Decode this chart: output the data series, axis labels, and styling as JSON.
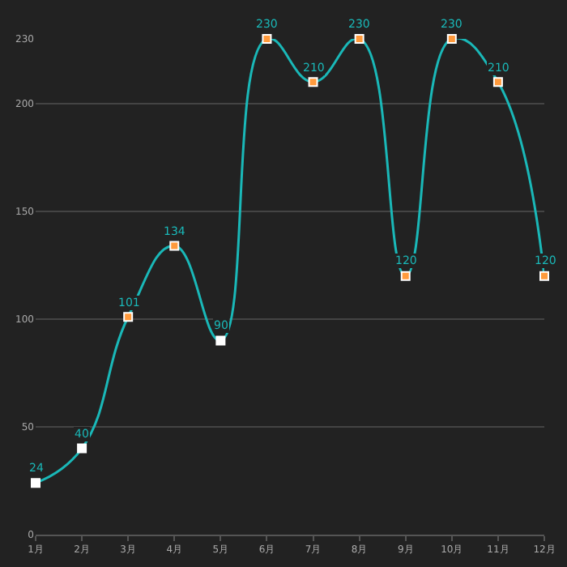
{
  "chart_data": {
    "type": "line",
    "categories": [
      "1月",
      "2月",
      "3月",
      "4月",
      "5月",
      "6月",
      "7月",
      "8月",
      "9月",
      "10月",
      "11月",
      "12月"
    ],
    "series": [
      {
        "color": "#1ab8b8",
        "values": [
          24,
          40,
          101,
          134,
          90,
          230,
          210,
          230,
          120,
          230,
          210,
          120
        ],
        "colors": [
          "#ffffff",
          "#ffffff",
          "#ff9a3c",
          "#ff9a3c",
          "#ffffff",
          "#ff9a3c",
          "#ff9a3c",
          "#ff9a3c",
          "#ff9a3c",
          "#ff9a3c",
          "#ff9a3c",
          "#ff9a3c"
        ]
      }
    ],
    "ylim": [
      0,
      230
    ],
    "yticks": [
      0,
      50,
      100,
      150,
      200,
      230
    ],
    "grid": "y",
    "data_labels": true,
    "marker": "square"
  }
}
